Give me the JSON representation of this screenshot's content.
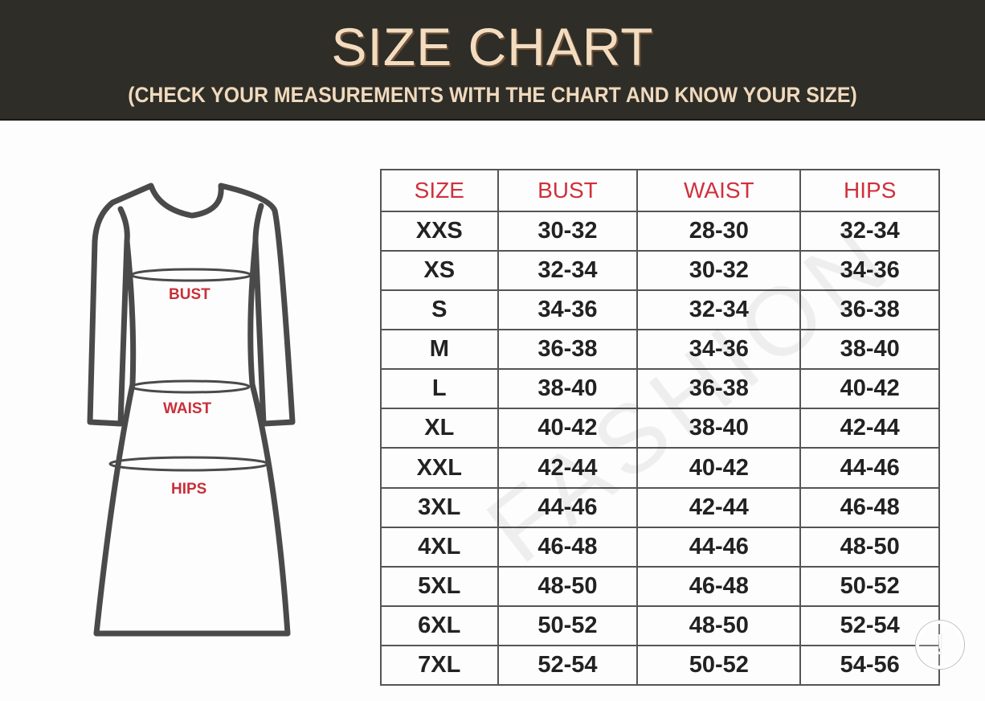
{
  "header": {
    "title": "SIZE CHART",
    "subtitle": "(CHECK YOUR MEASUREMENTS WITH THE CHART AND KNOW YOUR SIZE)"
  },
  "diagram": {
    "labels": [
      "BUST",
      "WAIST",
      "HIPS"
    ]
  },
  "watermark": "FASHION",
  "colors": {
    "header_bg": "#2e2d27",
    "title": "#f3dcc0",
    "accent_red": "#d0303c"
  },
  "icons": {
    "corner": "alert-circle-icon"
  },
  "chart_data": {
    "type": "table",
    "columns": [
      "SIZE",
      "BUST",
      "WAIST",
      "HIPS"
    ],
    "rows": [
      [
        "XXS",
        "30-32",
        "28-30",
        "32-34"
      ],
      [
        "XS",
        "32-34",
        "30-32",
        "34-36"
      ],
      [
        "S",
        "34-36",
        "32-34",
        "36-38"
      ],
      [
        "M",
        "36-38",
        "34-36",
        "38-40"
      ],
      [
        "L",
        "38-40",
        "36-38",
        "40-42"
      ],
      [
        "XL",
        "40-42",
        "38-40",
        "42-44"
      ],
      [
        "XXL",
        "42-44",
        "40-42",
        "44-46"
      ],
      [
        "3XL",
        "44-46",
        "42-44",
        "46-48"
      ],
      [
        "4XL",
        "46-48",
        "44-46",
        "48-50"
      ],
      [
        "5XL",
        "48-50",
        "46-48",
        "50-52"
      ],
      [
        "6XL",
        "50-52",
        "48-50",
        "52-54"
      ],
      [
        "7XL",
        "52-54",
        "50-52",
        "54-56"
      ]
    ]
  }
}
